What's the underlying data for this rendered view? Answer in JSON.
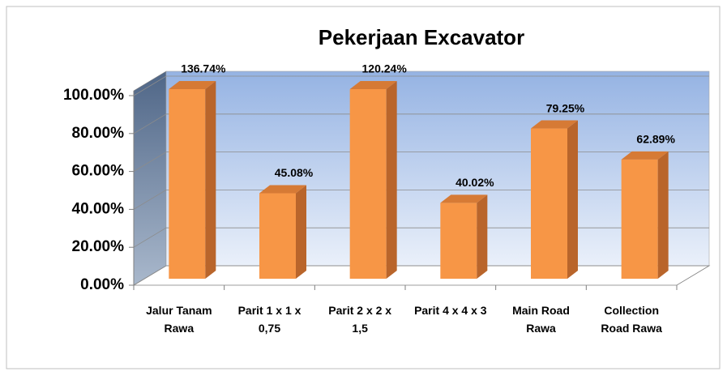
{
  "chart_data": {
    "type": "bar",
    "title": "Pekerjaan Excavator",
    "categories": [
      "Jalur Tanam\nRawa",
      "Parit 1 x 1 x\n0,75",
      "Parit 2 x 2 x\n1,5",
      "Parit 4 x 4 x 3",
      "Main Road\nRawa",
      "Collection\nRoad Rawa"
    ],
    "values": [
      136.74,
      45.08,
      120.24,
      40.02,
      79.25,
      62.89
    ],
    "value_labels": [
      "136.74%",
      "45.08%",
      "120.24%",
      "40.02%",
      "79.25%",
      "62.89%"
    ],
    "color": "#f79646",
    "ylim": [
      0,
      100
    ],
    "yticks": [
      {
        "value": 0,
        "label": "0.00%"
      },
      {
        "value": 20,
        "label": "20.00%"
      },
      {
        "value": 40,
        "label": "40.00%"
      },
      {
        "value": 60,
        "label": "60.00%"
      },
      {
        "value": 80,
        "label": "80.00%"
      },
      {
        "value": 100,
        "label": "100.00%"
      }
    ],
    "grid": true
  }
}
